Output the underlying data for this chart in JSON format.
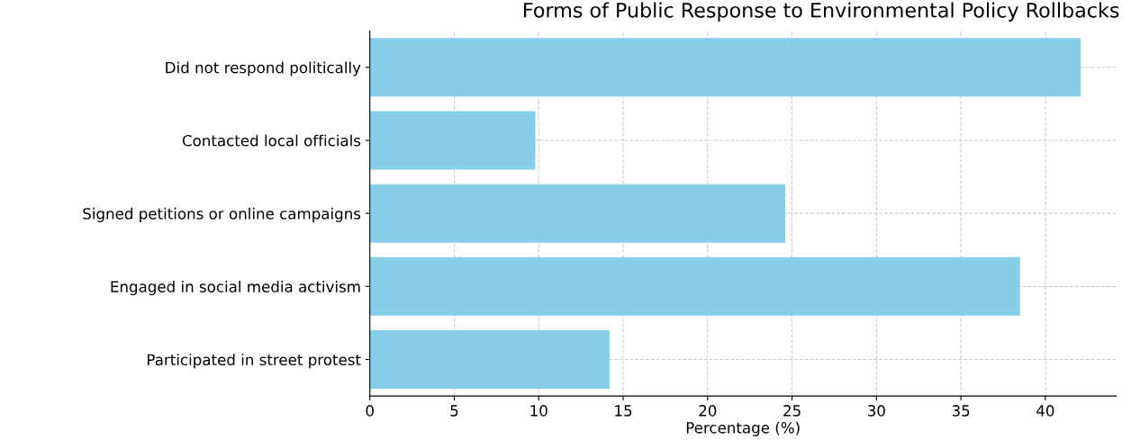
{
  "chart_data": {
    "type": "bar",
    "orientation": "horizontal",
    "title": "Forms of Public Response to Environmental Policy Rollbacks",
    "xlabel": "Percentage (%)",
    "categories": [
      "Did not respond politically",
      "Contacted local officials",
      "Signed petitions or online campaigns",
      "Engaged in social media activism",
      "Participated in street protest"
    ],
    "values": [
      42.1,
      9.8,
      24.6,
      38.5,
      14.2
    ],
    "color": "#87ceeb",
    "xlim": [
      0,
      44.2
    ],
    "xticks": [
      0,
      5,
      10,
      15,
      20,
      25,
      30,
      35,
      40
    ],
    "grid": true
  }
}
